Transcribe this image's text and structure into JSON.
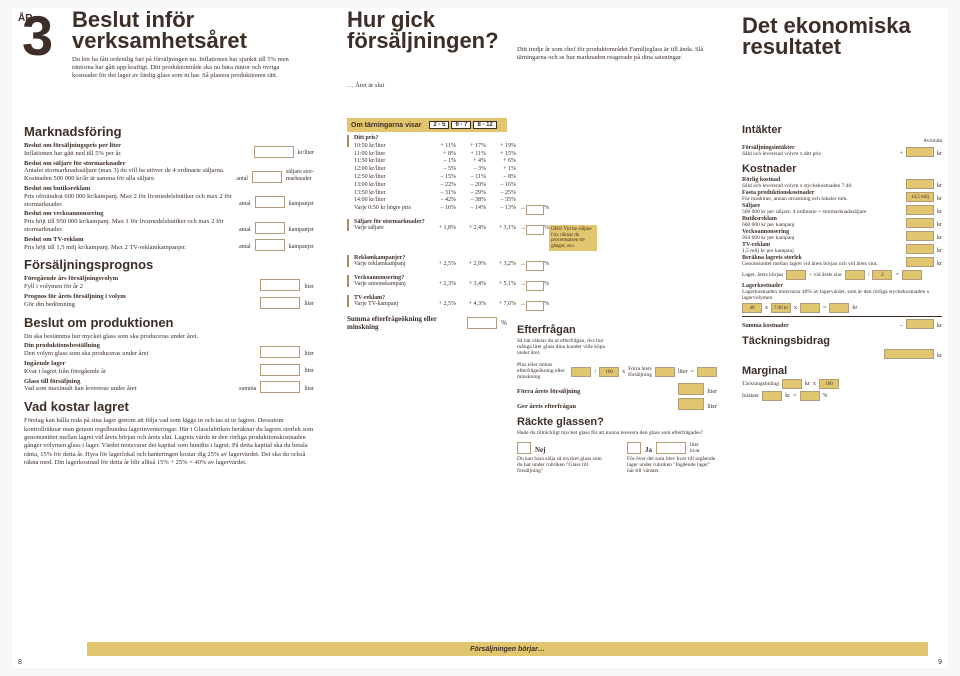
{
  "year": {
    "ar": "ÅR",
    "num": "3"
  },
  "top": {
    "title1": "Beslut inför",
    "title2": "verksamhetsåret",
    "intro": "Du bör ha fått ordentlig fart på försäljningen nu. Inflationen har sjunkit till 5% men räntorna har gått upp kraftigt. Ditt produktområde ska nu bära räntor och övriga kostnader för det lager av färdig glass som ni har. Så planera produktionen rätt.",
    "mid_title": "Hur gick försäljningen?",
    "mid_sub": "… Året är slut",
    "mid_intro": "Ditt tredje år som chef för produktområdet Familjeglass är till ända. Slå tärningarna och se hur marknaden reagerade på dina satsningar.",
    "right_title1": "Det ekonomiska",
    "right_title2": "resultatet"
  },
  "marknadsforing": {
    "title": "Marknadsföring",
    "pris_h": "Beslut om försäljningspris per liter",
    "pris_t": "Inflationen har gått ned till 5% per år.",
    "pris_u": "kr/liter",
    "stor_h": "Beslut om säljare för stormarknader",
    "stor_t": "Antalet stormarknadssäljare (max 3) du vill ha utöver de 4 ordinarie säljarna. Kostnaden 500 000 kr/år är samma för alla säljare.",
    "stor_l1": "antal",
    "stor_u": "säljare stor-\nmarknader",
    "butik_h": "Beslut om butiksreklam",
    "butik_t": "Pris oförändrat 600 000 kr/kampanj. Max 2 för livsmedelsbutiker och max 2 för stormarknader.",
    "butik_l": "antal",
    "butik_u": "kampanjer",
    "vecko_h": "Beslut om veckoannonsering",
    "vecko_t": "Pris höjt till 950 000 kr/kampanj. Max 1 för livsmedelsbutiker och max 2 för stormarknader.",
    "vecko_l": "antal",
    "vecko_u": "kampanjer",
    "tv_h": "Beslut om TV-reklam",
    "tv_t": "Pris höjt till 1,5 milj kr/kampanj. Max 2 TV-reklamkampanjer.",
    "tv_l": "antal",
    "tv_u": "kampanjer"
  },
  "prognos": {
    "title": "Försäljningsprognos",
    "r1": "Föregående års försäljningsvolym",
    "r1s": "Fyll i volymen för år 2",
    "r2": "Prognos för årets försäljning i volym",
    "r2s": "Gör din bedömning",
    "u": "liter"
  },
  "produktion": {
    "title": "Beslut om produktionen",
    "intro": "Du ska bestämma hur mycket glass som ska produceras under året.",
    "r1": "Din produktionsbeställning",
    "r1s": "Den volym glass som ska produceras under året",
    "r2": "Ingående lager",
    "r2s": "Kvar i lagret från föregående år",
    "r3": "Glass till försäljning",
    "r3s": "Vad som maximalt kan levereras under året",
    "sum": "summa",
    "u": "liter"
  },
  "lager": {
    "title": "Vad kostar lagret",
    "text": "Företag kan hålla reda på sina lager genom att följa vad som läggs in och tas ut ur lagren. Dessutom kontrollräknar man genom regelbundna lagerinventeringar. Här i Glassfabriken beräknar du lagrets storlek som genomsnittet mellan lagret vid årets början och årets slut. Lagrets värde är den rörliga produktionskostnaden gånger volymen glass i lager. Värdet motsvarar det kapital som bundits i lagret. På detta kapital ska du betala ränta, 15% för detta år. Hyra för lagerlokal och hanteringen kostar dig 25% av lagervärdet. Det ska du också räkna med. Din lagerkostnad för detta år blir alltså 15% + 25% = 40% av lagervärdet."
  },
  "dice": {
    "title": "Om tärningarna visar",
    "ranges": [
      "2 - 5",
      "6 - 7",
      "8 - 12"
    ]
  },
  "pristab": {
    "head": "Ditt pris?",
    "rows": [
      {
        "l": "10:50 kr/liter",
        "v": [
          "+ 11%",
          "+ 17%",
          "+ 19%"
        ]
      },
      {
        "l": "11:00 kr/liter",
        "v": [
          "+ 8%",
          "+ 11%",
          "+ 15%"
        ]
      },
      {
        "l": "11:50 kr/liter",
        "v": [
          "– 1%",
          "+ 4%",
          "+ 6%"
        ]
      },
      {
        "l": "12:00 kr/liter",
        "v": [
          "– 5%",
          "– 3%",
          "+ 1%"
        ]
      },
      {
        "l": "12:50 kr/liter",
        "v": [
          "– 15%",
          "– 11%",
          "– 8%"
        ]
      },
      {
        "l": "13:00 kr/liter",
        "v": [
          "– 22%",
          "– 20%",
          "– 16%"
        ]
      },
      {
        "l": "13:50 kr/liter",
        "v": [
          "– 31%",
          "– 29%",
          "– 25%"
        ]
      },
      {
        "l": "14:00 kr/liter",
        "v": [
          "– 42%",
          "– 38%",
          "– 35%"
        ]
      },
      {
        "l": "Varje 0:50 kr högre pris",
        "v": [
          "– 16%",
          "– 14%",
          "– 13%"
        ]
      }
    ],
    "arrow": "→",
    "pct": "%"
  },
  "effektrows": [
    {
      "h": "Säljare för stormarknader?",
      "s": "Varje säljare",
      "v": [
        "+ 1,8%",
        "+ 2,4%",
        "+ 3,1%"
      ]
    },
    {
      "h": "Reklamkampanjer?",
      "s": "Varje reklamkampanj",
      "v": [
        "+ 2,5%",
        "+ 2,9%",
        "+ 3,2%"
      ]
    },
    {
      "h": "Veckoannonsering?",
      "s": "Varje annonskampanj",
      "v": [
        "+ 2,3%",
        "+ 3,4%",
        "+ 5,1%"
      ]
    },
    {
      "h": "TV-reklam?",
      "s": "Varje TV-kampanj",
      "v": [
        "+ 2,5%",
        "+ 4,3%",
        "+ 7,6%"
      ]
    }
  ],
  "obs": "OBS! Vid tre säljare f.m. räknar du procentsatsen tre gånger, osv.",
  "summa": "Summa efterfrågeökning eller minskning",
  "efterfragan": {
    "title": "Efterfrågan",
    "intro": "Så här räknar du ut efterfrågan, dvs hur många liter glass dina kunder ville köpa under året.",
    "eq1a": "Plus eller minus efterfrågeökning eller minskning",
    "eq_in1": "100",
    "x": "x",
    "eq_in2": "Förra årets försäljning",
    "lit": "liter",
    "eq": "=",
    "forra": "Förra årets försäljning",
    "ger": "Ger årets efterfrågan"
  },
  "rackte": {
    "title": "Räckte glassen?",
    "text": "Hade du tillräckligt mycket glass för att kunna leverera den glass som efterfrågades?",
    "nej": "Nej",
    "ja": "Ja",
    "liter": "liter",
    "kvar": "kvar",
    "nejt": "Du kan bara sälja så mycket glass som du har under rubriken \"Glass till försäljning\"",
    "jat": "För över det som blev kvar till ingående lager under rubriken \"Ingående lager\" här till vänster."
  },
  "intakter": {
    "title": "Intäkter",
    "avr": "Avrunda",
    "r": "Försäljningsintäkter",
    "rs": "Såld och levererad volym x ditt pris",
    "plus": "+",
    "kr": "kr"
  },
  "kostnader": {
    "title": "Kostnader",
    "rows": [
      {
        "h": "Rörlig kostnad",
        "s": "Såld och levererad volym x styckekostnaden 7:40.",
        "eq": ""
      },
      {
        "h": "Fasta produktionskostnader",
        "s": "För maskiner, annan utrustning och lokaler mm.",
        "eq": "14,5 milj"
      },
      {
        "h": "Säljare",
        "s": "500 000 kr per säljare. 4 ordinarie + stormarknadssäljare"
      },
      {
        "h": "Butiksreklam",
        "s": "600 000 kr per kampanj"
      },
      {
        "h": "Veckoannonsering",
        "s": "950 000 kr per kampanj"
      },
      {
        "h": "TV-reklam",
        "s": "1,5 milj kr per kampanj"
      },
      {
        "h": "Beräkna lagrets storlek",
        "s": "Genomsnittet mellan lagret vid årets början och vid årets slut."
      }
    ],
    "lagercalc": {
      "a": "Lager, årets början",
      "b": "+ vid årets slut",
      "div": "2",
      "eq": "="
    },
    "lagerkost": {
      "h": "Lagerkostnader",
      "s": "Lagerkostnaden motsvarar 40% av lagervärdet, som är den rörliga styckekostnaden x lagervolymen"
    },
    "lagereq": [
      "40",
      "x",
      "7:40 kr",
      "x",
      "=",
      "kr"
    ],
    "sum": "Summa kostnader",
    "minus": "–",
    "kr": "kr"
  },
  "tack": {
    "title": "Täckningsbidrag"
  },
  "marginal": {
    "title": "Marginal",
    "r1": "Täckningsbidrag",
    "r2": "Intäkter",
    "kr": "kr",
    "x": "x",
    "hund": "100",
    "eq": "=",
    "pct": "%"
  },
  "footer": "Försäljningen börjar…",
  "pages": {
    "l": "8",
    "r": "9"
  }
}
